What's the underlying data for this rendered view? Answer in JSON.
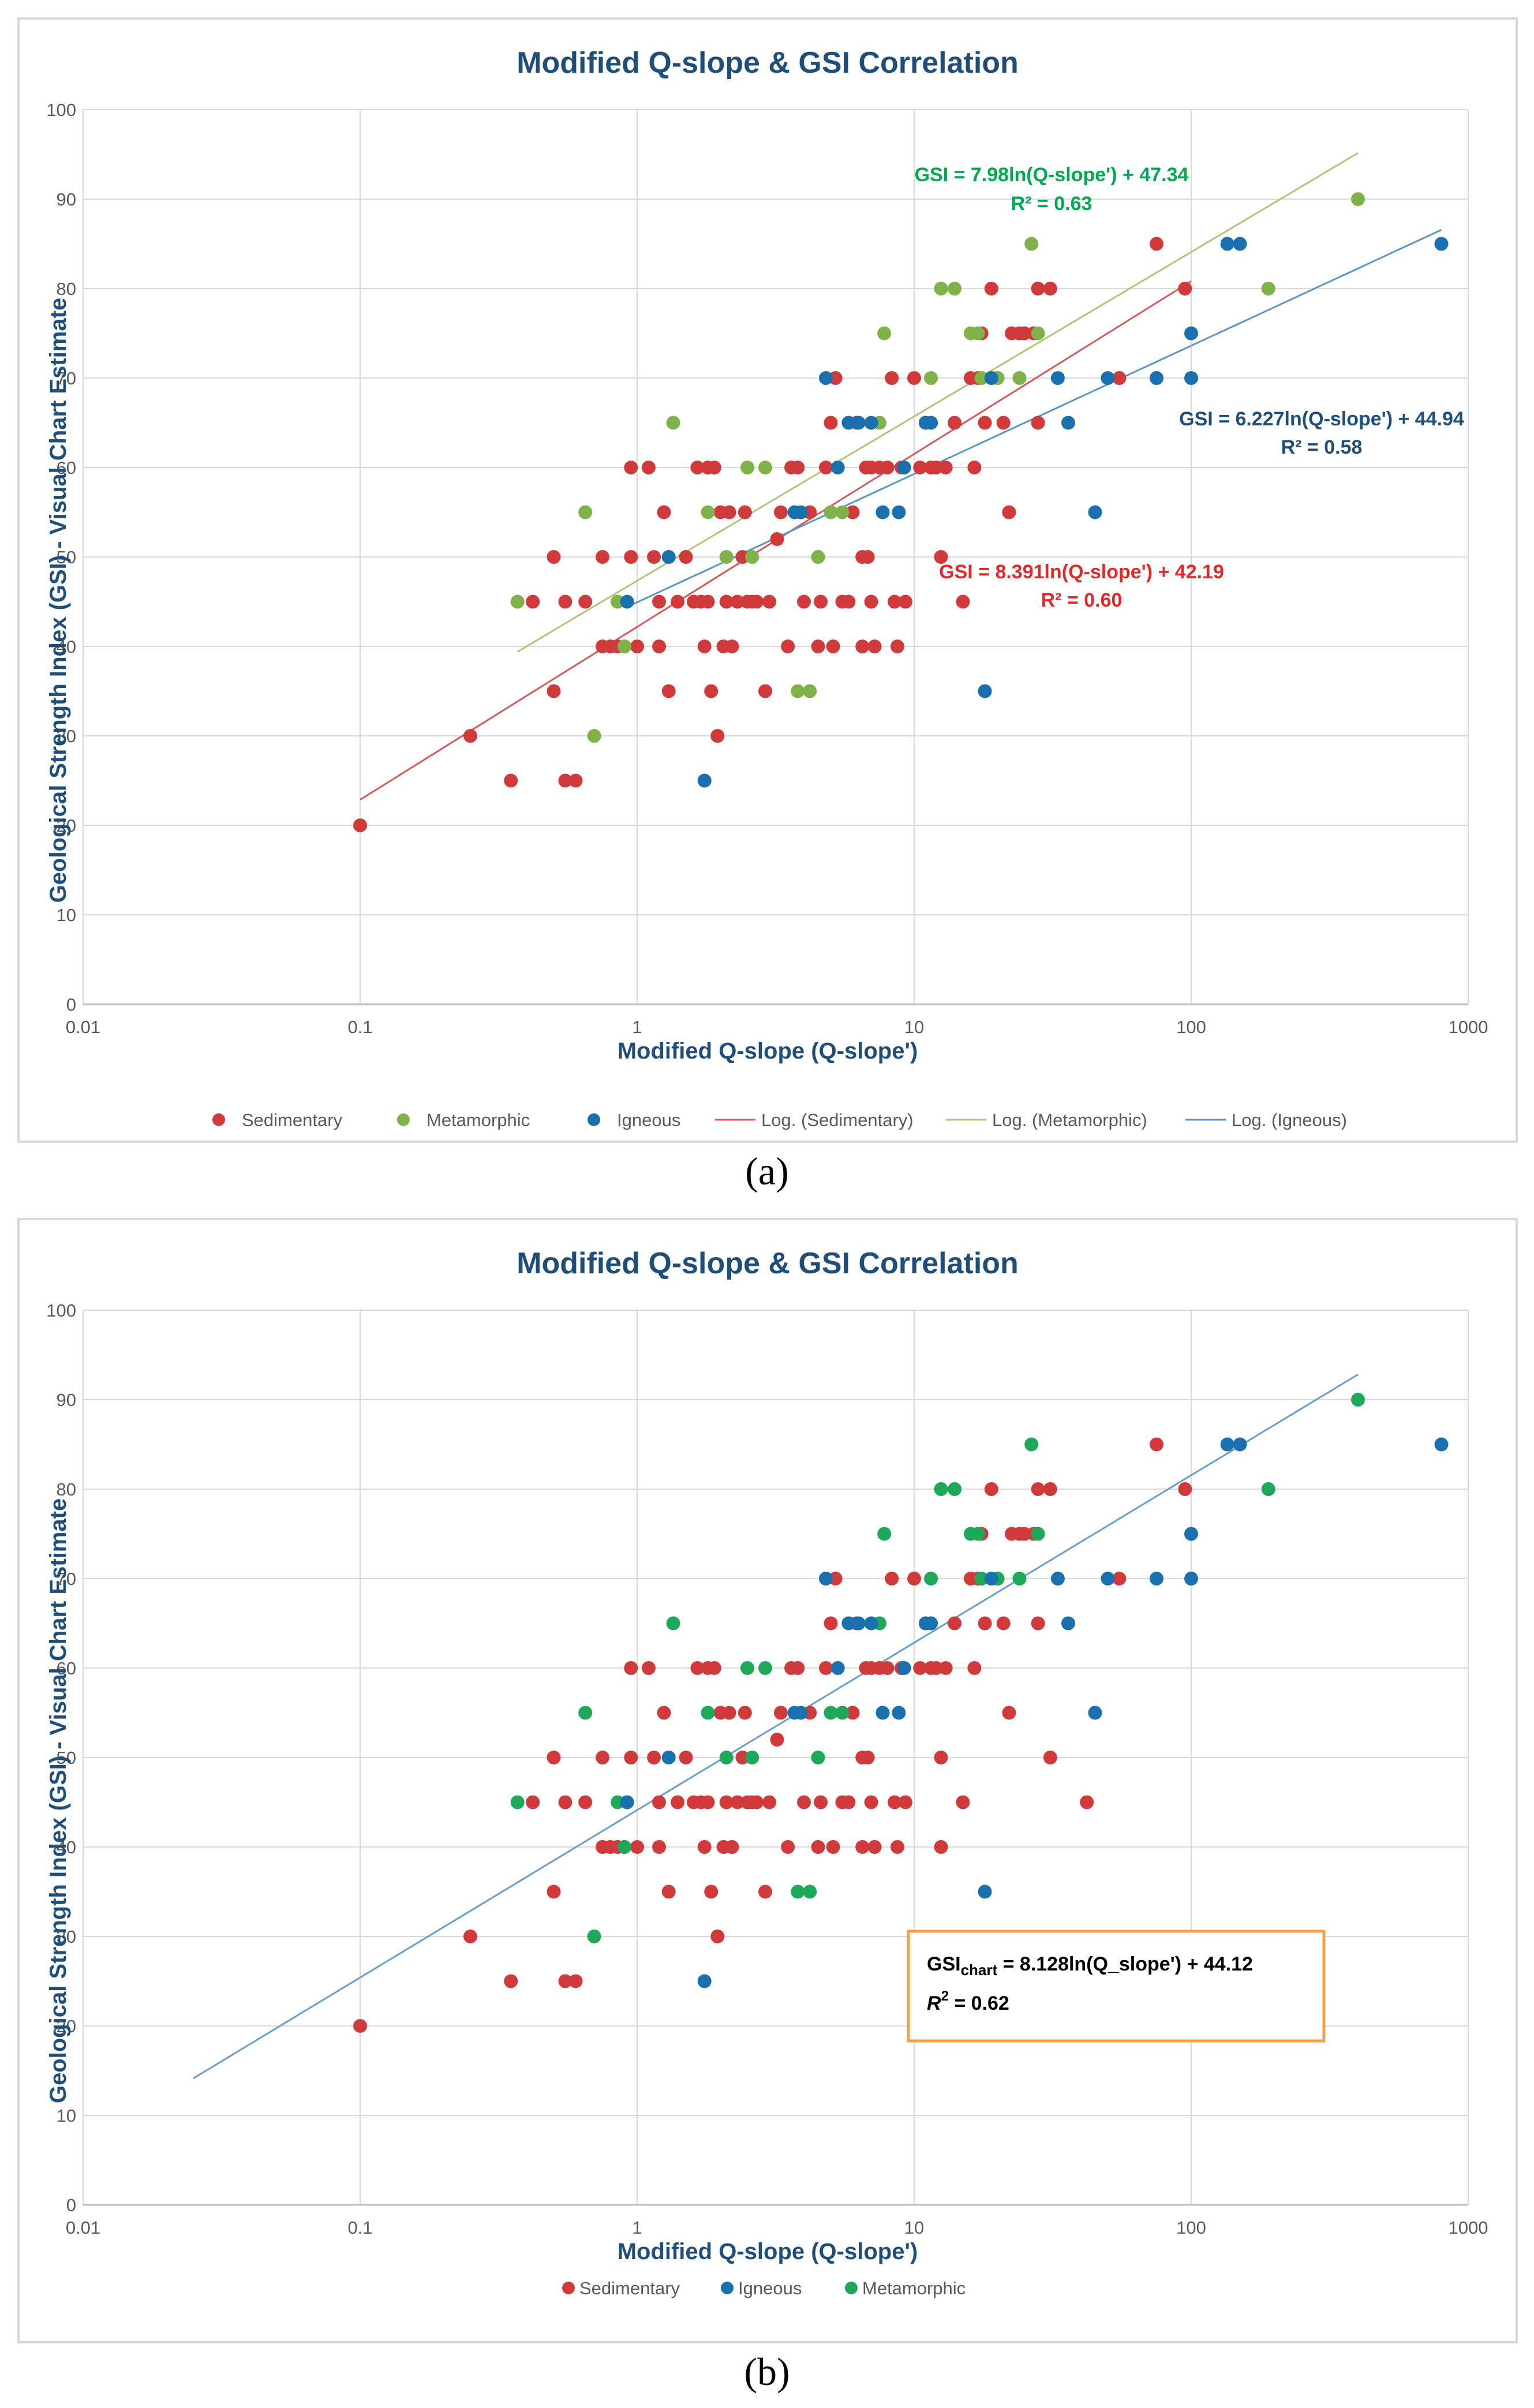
{
  "colors": {
    "sedimentary": "#d03a3a",
    "metamorphic_a": "#7fb34a",
    "metamorphic_b": "#1ea85a",
    "igneous": "#1a6fae",
    "fit_sedimentary": "#d35b5b",
    "fit_metamorphic": "#b5c47a",
    "fit_igneous": "#5b95c4",
    "fit_combined": "#6a9ec9",
    "annot_sedimentary": "#e02a2a",
    "annot_metamorphic": "#00a84f",
    "annot_igneous": "#1f4e79",
    "box_border": "#f0a04a",
    "title": "#1f4e79"
  },
  "panel_a": {
    "caption": "(a)",
    "title": "Modified Q-slope & GSI Correlation",
    "xlabel": "Modified Q-slope (Q-slope')",
    "ylabel": "Geological Strength Index (GSI) - Visual Chart Estimate",
    "annotations": {
      "metamorphic": [
        "GSI = 7.98ln(Q-slope') + 47.34",
        "R² = 0.63"
      ],
      "igneous": [
        "GSI = 6.227ln(Q-slope') + 44.94",
        "R² = 0.58"
      ],
      "sedimentary": [
        "GSI = 8.391ln(Q-slope') + 42.19",
        "R² = 0.60"
      ]
    },
    "legend": [
      "Sedimentary",
      "Metamorphic",
      "Igneous",
      "Log. (Sedimentary)",
      "Log. (Metamorphic)",
      "Log. (Igneous)"
    ]
  },
  "panel_b": {
    "caption": "(b)",
    "title": "Modified Q-slope & GSI Correlation",
    "xlabel": "Modified Q-slope (Q-slope')",
    "ylabel": "Geological Strength Index (GSI) - Visual Chart Estimate",
    "equation_box": {
      "line1_prefix": "GSI",
      "line1_sub": "chart",
      "line1_rest": " = 8.128ln(Q_slope') + 44.12",
      "line2_r": "R",
      "line2_sup": "2",
      "line2_rest": " = 0.62"
    },
    "legend": [
      "Sedimentary",
      "Igneous",
      "Metamorphic"
    ]
  },
  "chart_data": [
    {
      "type": "scatter",
      "title": "Modified Q-slope & GSI Correlation",
      "xlabel": "Modified Q-slope (Q-slope')",
      "ylabel": "Geological Strength Index (GSI) - Visual Chart Estimate",
      "xscale": "log",
      "xlim": [
        0.01,
        1000
      ],
      "ylim": [
        0,
        100
      ],
      "xticks": [
        "0.01",
        "0.1",
        "1",
        "10",
        "100",
        "1000"
      ],
      "yticks": [
        "0",
        "10",
        "20",
        "30",
        "40",
        "50",
        "60",
        "70",
        "80",
        "90",
        "100"
      ],
      "grid": true,
      "legend_position": "bottom",
      "series": [
        {
          "name": "Sedimentary",
          "points": [
            [
              0.1,
              20
            ],
            [
              0.25,
              30
            ],
            [
              0.35,
              25
            ],
            [
              0.42,
              45
            ],
            [
              0.5,
              35
            ],
            [
              0.5,
              50
            ],
            [
              0.55,
              45
            ],
            [
              0.55,
              25
            ],
            [
              0.6,
              25
            ],
            [
              0.65,
              45
            ],
            [
              0.75,
              40
            ],
            [
              0.75,
              50
            ],
            [
              0.8,
              40
            ],
            [
              0.85,
              40
            ],
            [
              0.9,
              40
            ],
            [
              0.95,
              50
            ],
            [
              0.95,
              60
            ],
            [
              1.0,
              40
            ],
            [
              1.1,
              60
            ],
            [
              1.15,
              50
            ],
            [
              1.2,
              45
            ],
            [
              1.2,
              40
            ],
            [
              1.25,
              55
            ],
            [
              1.3,
              35
            ],
            [
              1.4,
              45
            ],
            [
              1.5,
              50
            ],
            [
              1.6,
              45
            ],
            [
              1.65,
              60
            ],
            [
              1.7,
              45
            ],
            [
              1.75,
              40
            ],
            [
              1.8,
              45
            ],
            [
              1.8,
              60
            ],
            [
              1.85,
              35
            ],
            [
              1.9,
              60
            ],
            [
              1.95,
              30
            ],
            [
              2.0,
              55
            ],
            [
              2.05,
              40
            ],
            [
              2.1,
              45
            ],
            [
              2.15,
              55
            ],
            [
              2.2,
              40
            ],
            [
              2.3,
              45
            ],
            [
              2.4,
              50
            ],
            [
              2.45,
              55
            ],
            [
              2.5,
              45
            ],
            [
              2.6,
              45
            ],
            [
              2.7,
              45
            ],
            [
              2.9,
              35
            ],
            [
              3.0,
              45
            ],
            [
              3.2,
              52
            ],
            [
              3.3,
              55
            ],
            [
              3.5,
              40
            ],
            [
              3.6,
              60
            ],
            [
              3.8,
              60
            ],
            [
              4.0,
              45
            ],
            [
              4.2,
              55
            ],
            [
              4.5,
              40
            ],
            [
              4.6,
              45
            ],
            [
              4.8,
              60
            ],
            [
              5.0,
              65
            ],
            [
              5.1,
              40
            ],
            [
              5.2,
              70
            ],
            [
              5.5,
              45
            ],
            [
              5.8,
              45
            ],
            [
              6.0,
              55
            ],
            [
              6.2,
              65
            ],
            [
              6.5,
              50
            ],
            [
              6.5,
              40
            ],
            [
              6.7,
              60
            ],
            [
              6.8,
              50
            ],
            [
              7.0,
              45
            ],
            [
              7.0,
              60
            ],
            [
              7.2,
              40
            ],
            [
              7.5,
              60
            ],
            [
              8.0,
              60
            ],
            [
              8.3,
              70
            ],
            [
              8.5,
              45
            ],
            [
              8.7,
              40
            ],
            [
              9.0,
              60
            ],
            [
              9.3,
              45
            ],
            [
              10.0,
              70
            ],
            [
              10.5,
              60
            ],
            [
              11.0,
              65
            ],
            [
              11.5,
              60
            ],
            [
              12.0,
              60
            ],
            [
              12.5,
              50
            ],
            [
              13.0,
              60
            ],
            [
              14.0,
              65
            ],
            [
              15.0,
              45
            ],
            [
              16.0,
              70
            ],
            [
              16.5,
              60
            ],
            [
              17.0,
              70
            ],
            [
              17.5,
              75
            ],
            [
              18.0,
              65
            ],
            [
              19.0,
              80
            ],
            [
              20.0,
              70
            ],
            [
              21.0,
              65
            ],
            [
              22.0,
              55
            ],
            [
              22.5,
              75
            ],
            [
              24.0,
              75
            ],
            [
              25.0,
              75
            ],
            [
              27.0,
              75
            ],
            [
              28.0,
              80
            ],
            [
              28.0,
              65
            ],
            [
              31.0,
              80
            ],
            [
              55.0,
              70
            ],
            [
              75.0,
              85
            ],
            [
              95.0,
              80
            ]
          ]
        },
        {
          "name": "Metamorphic",
          "points": [
            [
              0.37,
              45
            ],
            [
              0.65,
              55
            ],
            [
              0.7,
              30
            ],
            [
              0.85,
              45
            ],
            [
              0.9,
              40
            ],
            [
              1.35,
              65
            ],
            [
              1.8,
              55
            ],
            [
              2.1,
              50
            ],
            [
              2.5,
              60
            ],
            [
              2.6,
              50
            ],
            [
              2.9,
              60
            ],
            [
              3.8,
              35
            ],
            [
              4.2,
              35
            ],
            [
              4.5,
              50
            ],
            [
              5.0,
              55
            ],
            [
              5.5,
              55
            ],
            [
              7.5,
              65
            ],
            [
              7.8,
              75
            ],
            [
              11.5,
              70
            ],
            [
              12.5,
              80
            ],
            [
              14.0,
              80
            ],
            [
              16.0,
              75
            ],
            [
              17.0,
              75
            ],
            [
              17.5,
              70
            ],
            [
              20.0,
              70
            ],
            [
              24.0,
              70
            ],
            [
              26.5,
              85
            ],
            [
              28.0,
              75
            ],
            [
              190.0,
              80
            ],
            [
              400.0,
              90
            ]
          ]
        },
        {
          "name": "Igneous",
          "points": [
            [
              0.92,
              45
            ],
            [
              1.3,
              50
            ],
            [
              1.75,
              25
            ],
            [
              3.7,
              55
            ],
            [
              3.9,
              55
            ],
            [
              4.8,
              70
            ],
            [
              5.3,
              60
            ],
            [
              5.8,
              65
            ],
            [
              6.3,
              65
            ],
            [
              7.0,
              65
            ],
            [
              7.7,
              55
            ],
            [
              8.8,
              55
            ],
            [
              9.2,
              60
            ],
            [
              11.0,
              65
            ],
            [
              11.5,
              65
            ],
            [
              18.0,
              35
            ],
            [
              19.0,
              70
            ],
            [
              33.0,
              70
            ],
            [
              36.0,
              65
            ],
            [
              45.0,
              55
            ],
            [
              50.0,
              70
            ],
            [
              75.0,
              70
            ],
            [
              100.0,
              75
            ],
            [
              100.0,
              70
            ],
            [
              135.0,
              85
            ],
            [
              150.0,
              85
            ],
            [
              800.0,
              85
            ]
          ]
        }
      ],
      "trendlines": [
        {
          "name": "Log. (Sedimentary)",
          "equation": "GSI = 8.391ln(Q-slope') + 42.19",
          "a": 8.391,
          "b": 42.19,
          "r2": 0.6,
          "x_range": [
            0.1,
            100
          ]
        },
        {
          "name": "Log. (Metamorphic)",
          "equation": "GSI = 7.98ln(Q-slope') + 47.34",
          "a": 7.98,
          "b": 47.34,
          "r2": 0.63,
          "x_range": [
            0.37,
            400
          ]
        },
        {
          "name": "Log. (Igneous)",
          "equation": "GSI = 6.227ln(Q-slope') + 44.94",
          "a": 6.227,
          "b": 44.94,
          "r2": 0.58,
          "x_range": [
            0.92,
            800
          ]
        }
      ]
    },
    {
      "type": "scatter",
      "title": "Modified Q-slope & GSI Correlation",
      "xlabel": "Modified Q-slope (Q-slope')",
      "ylabel": "Geological Strength Index (GSI) - Visual Chart Estimate",
      "xscale": "log",
      "xlim": [
        0.01,
        1000
      ],
      "ylim": [
        0,
        100
      ],
      "xticks": [
        "0.01",
        "0.1",
        "1",
        "10",
        "100",
        "1000"
      ],
      "yticks": [
        "0",
        "10",
        "20",
        "30",
        "40",
        "50",
        "60",
        "70",
        "80",
        "90",
        "100"
      ],
      "grid": true,
      "legend_position": "bottom",
      "series_ref": "same points as first chart; Sedimentary, Igneous, Metamorphic",
      "extra_points": {
        "Sedimentary": [
          [
            31.0,
            50
          ],
          [
            42.0,
            45
          ],
          [
            12.5,
            40
          ]
        ]
      },
      "trendlines": [
        {
          "name": "GSIchart",
          "equation": "GSIchart = 8.128ln(Q_slope') + 44.12",
          "a": 8.128,
          "b": 44.12,
          "r2": 0.62,
          "x_range": [
            0.025,
            400
          ]
        }
      ]
    }
  ]
}
